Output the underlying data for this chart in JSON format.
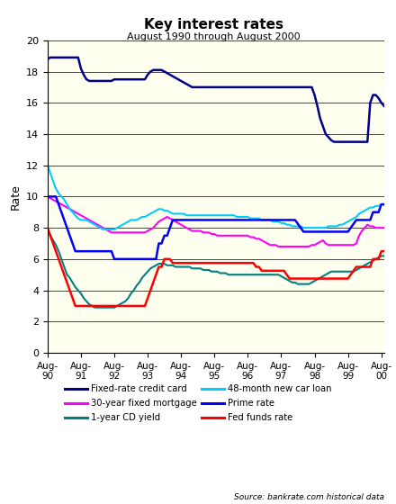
{
  "title": "Key interest rates",
  "subtitle": "August 1990 through August 2000",
  "source": "Source: bankrate.com historical data",
  "ylabel": "Rate",
  "ylim": [
    0,
    20
  ],
  "yticks": [
    0,
    2,
    4,
    6,
    8,
    10,
    12,
    14,
    16,
    18,
    20
  ],
  "background_color": "#FFFFF0",
  "fig_bg_color": "#FFFFFF",
  "legend_entries": [
    "Fixed-rate credit card",
    "30-year fixed mortgage",
    "1-year CD yield",
    "48-month new car loan",
    "Prime rate",
    "Fed funds rate"
  ],
  "line_colors": {
    "fixed_rate_credit_card": "#00008B",
    "mortgage_30yr": "#FF00FF",
    "cd_yield_1yr": "#008080",
    "car_loan_48mo": "#00CCFF",
    "prime_rate": "#0000FF",
    "fed_funds": "#FF0000"
  },
  "xtick_labels": [
    "Aug-\n90",
    "Aug-\n91",
    "Aug-\n92",
    "Aug-\n93",
    "Aug-\n94",
    "Aug-\n95",
    "Aug-\n96",
    "Aug-\n97",
    "Aug-\n98",
    "Aug-\n99",
    "Aug-\n00"
  ],
  "fixed_rate_credit_card": [
    18.8,
    18.9,
    18.9,
    18.9,
    18.9,
    18.9,
    18.9,
    18.9,
    18.9,
    18.9,
    18.9,
    18.9,
    18.2,
    17.8,
    17.5,
    17.4,
    17.4,
    17.4,
    17.4,
    17.4,
    17.4,
    17.4,
    17.4,
    17.4,
    17.5,
    17.5,
    17.5,
    17.5,
    17.5,
    17.5,
    17.5,
    17.5,
    17.5,
    17.5,
    17.5,
    17.5,
    17.8,
    18.0,
    18.1,
    18.1,
    18.1,
    18.1,
    18.0,
    17.9,
    17.8,
    17.7,
    17.6,
    17.5,
    17.4,
    17.3,
    17.2,
    17.1,
    17.0,
    17.0,
    17.0,
    17.0,
    17.0,
    17.0,
    17.0,
    17.0,
    17.0,
    17.0,
    17.0,
    17.0,
    17.0,
    17.0,
    17.0,
    17.0,
    17.0,
    17.0,
    17.0,
    17.0,
    17.0,
    17.0,
    17.0,
    17.0,
    17.0,
    17.0,
    17.0,
    17.0,
    17.0,
    17.0,
    17.0,
    17.0,
    17.0,
    17.0,
    17.0,
    17.0,
    17.0,
    17.0,
    17.0,
    17.0,
    17.0,
    17.0,
    17.0,
    17.0,
    16.5,
    15.8,
    15.0,
    14.5,
    14.0,
    13.8,
    13.6,
    13.5,
    13.5,
    13.5,
    13.5,
    13.5,
    13.5,
    13.5,
    13.5,
    13.5,
    13.5,
    13.5,
    13.5,
    13.5,
    16.0,
    16.5,
    16.5,
    16.3,
    16.0,
    15.8
  ],
  "mortgage_30yr": [
    10.0,
    9.9,
    9.8,
    9.7,
    9.6,
    9.5,
    9.4,
    9.3,
    9.2,
    9.1,
    9.0,
    8.9,
    8.8,
    8.7,
    8.6,
    8.5,
    8.4,
    8.3,
    8.2,
    8.1,
    8.0,
    7.9,
    7.8,
    7.7,
    7.7,
    7.7,
    7.7,
    7.7,
    7.7,
    7.7,
    7.7,
    7.7,
    7.7,
    7.7,
    7.7,
    7.7,
    7.8,
    7.9,
    8.0,
    8.2,
    8.4,
    8.5,
    8.6,
    8.7,
    8.6,
    8.5,
    8.4,
    8.3,
    8.2,
    8.1,
    8.0,
    7.9,
    7.8,
    7.8,
    7.8,
    7.8,
    7.7,
    7.7,
    7.7,
    7.6,
    7.6,
    7.5,
    7.5,
    7.5,
    7.5,
    7.5,
    7.5,
    7.5,
    7.5,
    7.5,
    7.5,
    7.5,
    7.5,
    7.4,
    7.4,
    7.3,
    7.3,
    7.2,
    7.1,
    7.0,
    6.9,
    6.9,
    6.9,
    6.8,
    6.8,
    6.8,
    6.8,
    6.8,
    6.8,
    6.8,
    6.8,
    6.8,
    6.8,
    6.8,
    6.8,
    6.9,
    6.9,
    7.0,
    7.1,
    7.2,
    7.0,
    6.9,
    6.9,
    6.9,
    6.9,
    6.9,
    6.9,
    6.9,
    6.9,
    6.9,
    6.9,
    7.0,
    7.5,
    7.8,
    8.0,
    8.2,
    8.1,
    8.1,
    8.0,
    8.0,
    8.0,
    8.0
  ],
  "cd_yield_1yr": [
    7.8,
    7.5,
    7.2,
    6.9,
    6.5,
    6.0,
    5.5,
    5.0,
    4.8,
    4.5,
    4.2,
    4.0,
    3.8,
    3.5,
    3.3,
    3.1,
    3.0,
    2.9,
    2.9,
    2.9,
    2.9,
    2.9,
    2.9,
    2.9,
    2.9,
    3.0,
    3.1,
    3.2,
    3.3,
    3.5,
    3.8,
    4.0,
    4.3,
    4.5,
    4.8,
    5.0,
    5.2,
    5.4,
    5.5,
    5.6,
    5.7,
    5.7,
    5.7,
    5.6,
    5.6,
    5.6,
    5.5,
    5.5,
    5.5,
    5.5,
    5.5,
    5.5,
    5.4,
    5.4,
    5.4,
    5.4,
    5.3,
    5.3,
    5.3,
    5.2,
    5.2,
    5.2,
    5.1,
    5.1,
    5.1,
    5.0,
    5.0,
    5.0,
    5.0,
    5.0,
    5.0,
    5.0,
    5.0,
    5.0,
    5.0,
    5.0,
    5.0,
    5.0,
    5.0,
    5.0,
    5.0,
    5.0,
    5.0,
    5.0,
    4.9,
    4.8,
    4.7,
    4.6,
    4.5,
    4.5,
    4.4,
    4.4,
    4.4,
    4.4,
    4.4,
    4.5,
    4.6,
    4.7,
    4.8,
    4.9,
    5.0,
    5.1,
    5.2,
    5.2,
    5.2,
    5.2,
    5.2,
    5.2,
    5.2,
    5.2,
    5.2,
    5.3,
    5.4,
    5.5,
    5.6,
    5.7,
    5.8,
    5.9,
    6.0,
    6.1,
    6.2,
    6.2
  ],
  "car_loan_48mo": [
    12.0,
    11.5,
    11.0,
    10.5,
    10.2,
    10.0,
    9.8,
    9.5,
    9.2,
    9.0,
    8.8,
    8.6,
    8.5,
    8.5,
    8.5,
    8.4,
    8.3,
    8.2,
    8.1,
    8.0,
    7.9,
    7.9,
    7.9,
    7.9,
    7.9,
    8.0,
    8.1,
    8.2,
    8.3,
    8.4,
    8.5,
    8.5,
    8.5,
    8.6,
    8.7,
    8.7,
    8.8,
    8.9,
    9.0,
    9.1,
    9.2,
    9.2,
    9.1,
    9.1,
    9.0,
    8.9,
    8.9,
    8.9,
    8.9,
    8.9,
    8.8,
    8.8,
    8.8,
    8.8,
    8.8,
    8.8,
    8.8,
    8.8,
    8.8,
    8.8,
    8.8,
    8.8,
    8.8,
    8.8,
    8.8,
    8.8,
    8.8,
    8.8,
    8.7,
    8.7,
    8.7,
    8.7,
    8.7,
    8.6,
    8.6,
    8.6,
    8.6,
    8.5,
    8.5,
    8.5,
    8.5,
    8.4,
    8.4,
    8.4,
    8.3,
    8.3,
    8.2,
    8.2,
    8.1,
    8.1,
    8.1,
    8.1,
    8.0,
    8.0,
    8.0,
    8.0,
    8.0,
    8.0,
    8.0,
    8.0,
    8.0,
    8.1,
    8.1,
    8.1,
    8.1,
    8.2,
    8.2,
    8.3,
    8.4,
    8.5,
    8.6,
    8.7,
    8.9,
    9.0,
    9.1,
    9.2,
    9.3,
    9.3,
    9.4,
    9.4,
    9.5,
    9.5
  ],
  "prime_rate": [
    10.0,
    10.0,
    10.0,
    10.0,
    9.5,
    9.0,
    8.5,
    8.0,
    7.5,
    7.0,
    6.5,
    6.5,
    6.5,
    6.5,
    6.5,
    6.5,
    6.5,
    6.5,
    6.5,
    6.5,
    6.5,
    6.5,
    6.5,
    6.5,
    6.0,
    6.0,
    6.0,
    6.0,
    6.0,
    6.0,
    6.0,
    6.0,
    6.0,
    6.0,
    6.0,
    6.0,
    6.0,
    6.0,
    6.0,
    6.0,
    7.0,
    7.0,
    7.5,
    7.5,
    8.0,
    8.5,
    8.5,
    8.5,
    8.5,
    8.5,
    8.5,
    8.5,
    8.5,
    8.5,
    8.5,
    8.5,
    8.5,
    8.5,
    8.5,
    8.5,
    8.5,
    8.5,
    8.5,
    8.5,
    8.5,
    8.5,
    8.5,
    8.5,
    8.5,
    8.5,
    8.5,
    8.5,
    8.5,
    8.5,
    8.5,
    8.5,
    8.5,
    8.5,
    8.5,
    8.5,
    8.5,
    8.5,
    8.5,
    8.5,
    8.5,
    8.5,
    8.5,
    8.5,
    8.5,
    8.5,
    8.25,
    8.0,
    7.75,
    7.75,
    7.75,
    7.75,
    7.75,
    7.75,
    7.75,
    7.75,
    7.75,
    7.75,
    7.75,
    7.75,
    7.75,
    7.75,
    7.75,
    7.75,
    7.75,
    8.0,
    8.25,
    8.5,
    8.5,
    8.5,
    8.5,
    8.5,
    8.5,
    9.0,
    9.0,
    9.0,
    9.5,
    9.5
  ],
  "fed_funds": [
    8.0,
    7.5,
    7.0,
    6.5,
    6.0,
    5.5,
    5.0,
    4.5,
    4.0,
    3.5,
    3.0,
    3.0,
    3.0,
    3.0,
    3.0,
    3.0,
    3.0,
    3.0,
    3.0,
    3.0,
    3.0,
    3.0,
    3.0,
    3.0,
    3.0,
    3.0,
    3.0,
    3.0,
    3.0,
    3.0,
    3.0,
    3.0,
    3.0,
    3.0,
    3.0,
    3.0,
    3.5,
    4.0,
    4.5,
    5.0,
    5.5,
    5.5,
    6.0,
    6.0,
    6.0,
    5.75,
    5.75,
    5.75,
    5.75,
    5.75,
    5.75,
    5.75,
    5.75,
    5.75,
    5.75,
    5.75,
    5.75,
    5.75,
    5.75,
    5.75,
    5.75,
    5.75,
    5.75,
    5.75,
    5.75,
    5.75,
    5.75,
    5.75,
    5.75,
    5.75,
    5.75,
    5.75,
    5.75,
    5.75,
    5.75,
    5.5,
    5.5,
    5.25,
    5.25,
    5.25,
    5.25,
    5.25,
    5.25,
    5.25,
    5.25,
    5.25,
    5.0,
    4.75,
    4.75,
    4.75,
    4.75,
    4.75,
    4.75,
    4.75,
    4.75,
    4.75,
    4.75,
    4.75,
    4.75,
    4.75,
    4.75,
    4.75,
    4.75,
    4.75,
    4.75,
    4.75,
    4.75,
    4.75,
    4.75,
    5.0,
    5.25,
    5.5,
    5.5,
    5.5,
    5.5,
    5.5,
    5.5,
    6.0,
    6.0,
    6.0,
    6.5,
    6.5
  ]
}
